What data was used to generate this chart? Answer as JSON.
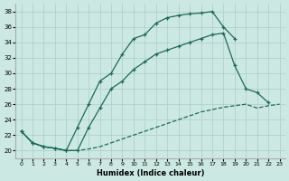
{
  "xlabel": "Humidex (Indice chaleur)",
  "bg_color": "#cce8e2",
  "grid_color": "#aacccc",
  "line_color": "#1a6b5a",
  "xlim_min": -0.5,
  "xlim_max": 23.5,
  "ylim_min": 19.0,
  "ylim_max": 39.0,
  "xtick_vals": [
    0,
    1,
    2,
    3,
    4,
    5,
    6,
    7,
    8,
    9,
    10,
    11,
    12,
    13,
    14,
    15,
    16,
    17,
    18,
    19,
    20,
    21,
    22,
    23
  ],
  "ytick_vals": [
    20,
    22,
    24,
    26,
    28,
    30,
    32,
    34,
    36,
    38
  ],
  "line1_x": [
    0,
    1,
    2,
    3,
    4,
    5,
    6,
    7,
    8,
    9,
    10,
    11,
    12,
    13,
    14,
    15,
    16,
    17,
    18,
    19
  ],
  "line1_y": [
    22.5,
    21.0,
    20.5,
    20.3,
    20.0,
    23.0,
    26.0,
    29.0,
    30.0,
    32.5,
    34.5,
    35.0,
    36.5,
    37.2,
    37.5,
    37.7,
    37.8,
    38.0,
    36.0,
    34.5
  ],
  "line2_x": [
    0,
    1,
    2,
    3,
    4,
    5,
    6,
    7,
    8,
    9,
    10,
    11,
    12,
    13,
    14,
    15,
    16,
    17,
    18,
    19,
    20,
    21,
    22
  ],
  "line2_y": [
    22.5,
    21.0,
    20.5,
    20.3,
    20.0,
    20.0,
    23.0,
    25.5,
    28.0,
    29.0,
    30.5,
    31.5,
    32.5,
    33.0,
    33.5,
    34.0,
    34.5,
    35.0,
    35.2,
    31.0,
    28.0,
    27.5,
    26.2
  ],
  "line3_x": [
    0,
    1,
    2,
    3,
    4,
    5,
    6,
    7,
    8,
    9,
    10,
    11,
    12,
    13,
    14,
    15,
    16,
    17,
    18,
    19,
    20,
    21,
    22,
    23
  ],
  "line3_y": [
    22.5,
    21.0,
    20.5,
    20.3,
    20.0,
    20.0,
    20.2,
    20.5,
    21.0,
    21.5,
    22.0,
    22.5,
    23.0,
    23.5,
    24.0,
    24.5,
    25.0,
    25.3,
    25.6,
    25.8,
    26.0,
    25.5,
    25.8,
    26.0
  ]
}
